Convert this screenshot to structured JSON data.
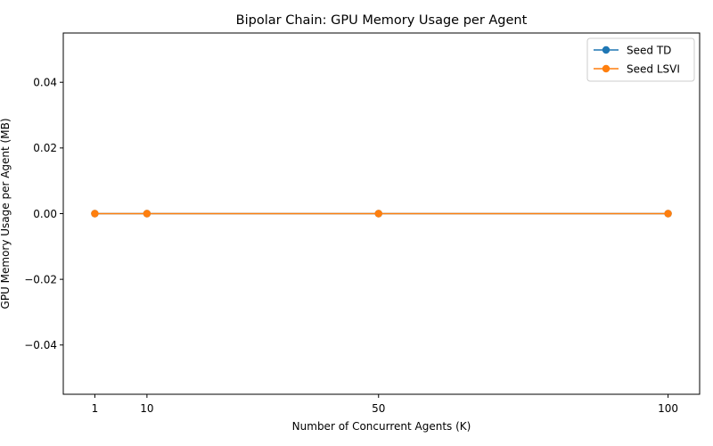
{
  "chart_data": {
    "type": "line",
    "title": "Bipolar Chain: GPU Memory Usage per Agent",
    "xlabel": "Number of Concurrent Agents (K)",
    "ylabel": "GPU Memory Usage per Agent (MB)",
    "x": [
      1,
      10,
      50,
      100
    ],
    "x_tick_labels": [
      "1",
      "10",
      "50",
      "100"
    ],
    "xlim": [
      -4.45,
      105.45
    ],
    "ylim": [
      -0.055,
      0.055
    ],
    "y_ticks": [
      -0.04,
      -0.02,
      0.0,
      0.02,
      0.04
    ],
    "y_tick_labels": [
      "−0.04",
      "−0.02",
      "0.00",
      "0.02",
      "0.04"
    ],
    "series": [
      {
        "name": "Seed TD",
        "values": [
          0,
          0,
          0,
          0
        ],
        "color": "#1f77b4",
        "marker": "circle"
      },
      {
        "name": "Seed LSVI",
        "values": [
          0,
          0,
          0,
          0
        ],
        "color": "#ff7f0e",
        "marker": "circle"
      }
    ],
    "legend_position": "top-right",
    "grid": false
  }
}
